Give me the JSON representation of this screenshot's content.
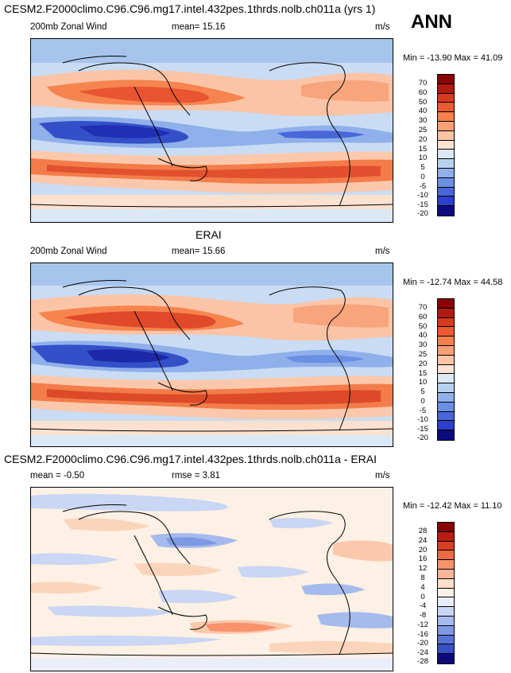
{
  "panels": [
    {
      "title": "CESM2.F2000climo.C96.C96.mg17.intel.432pes.1thrds.nolb.ch011a (yrs 1)",
      "variable": "200mb Zonal Wind",
      "stat1": "mean=  15.16",
      "units": "m/s",
      "minmax": "Min = -13.90 Max =  41.09",
      "colorbar_labels": [
        "70",
        "60",
        "50",
        "40",
        "30",
        "25",
        "20",
        "15",
        "10",
        "5",
        "0",
        "-5",
        "-10",
        "-15",
        "-20"
      ]
    },
    {
      "title": "ERAI",
      "variable": "200mb Zonal Wind",
      "stat1": "mean=  15.66",
      "units": "m/s",
      "minmax": "Min = -12.74 Max =  44.58",
      "colorbar_labels": [
        "70",
        "60",
        "50",
        "40",
        "30",
        "25",
        "20",
        "15",
        "10",
        "5",
        "0",
        "-5",
        "-10",
        "-15",
        "-20"
      ]
    },
    {
      "title": "CESM2.F2000climo.C96.C96.mg17.intel.432pes.1thrds.nolb.ch011a - ERAI",
      "variable": "mean =  -0.50",
      "stat1": "rmse =   3.81",
      "units": "m/s",
      "minmax": "Min = -12.42 Max =  11.10",
      "colorbar_labels": [
        "28",
        "24",
        "20",
        "16",
        "12",
        "8",
        "4",
        "0",
        "-4",
        "-8",
        "-12",
        "-16",
        "-20",
        "-24",
        "-28"
      ]
    }
  ],
  "season": "ANN",
  "colors": {
    "levels": [
      "#8b0000",
      "#b31a0f",
      "#d63b1e",
      "#ee5a34",
      "#f6804d",
      "#fba074",
      "#fdc4a4",
      "#fbe3d0",
      "#dbe9f7",
      "#b7d2f0",
      "#8fb0ea",
      "#6b8fe3",
      "#4a67d9",
      "#2c3fcc",
      "#1a21b0",
      "#0c0a80"
    ],
    "diff_levels": [
      "#8b0000",
      "#b81e10",
      "#d93f22",
      "#ee6a44",
      "#f7926d",
      "#fbb699",
      "#fde0cc",
      "#fdf2e8",
      "#e9eefa",
      "#c9d6f4",
      "#a5baed",
      "#7e98e3",
      "#5873d6",
      "#3750c6",
      "#1d2ca8",
      "#0a0a7a"
    ]
  }
}
